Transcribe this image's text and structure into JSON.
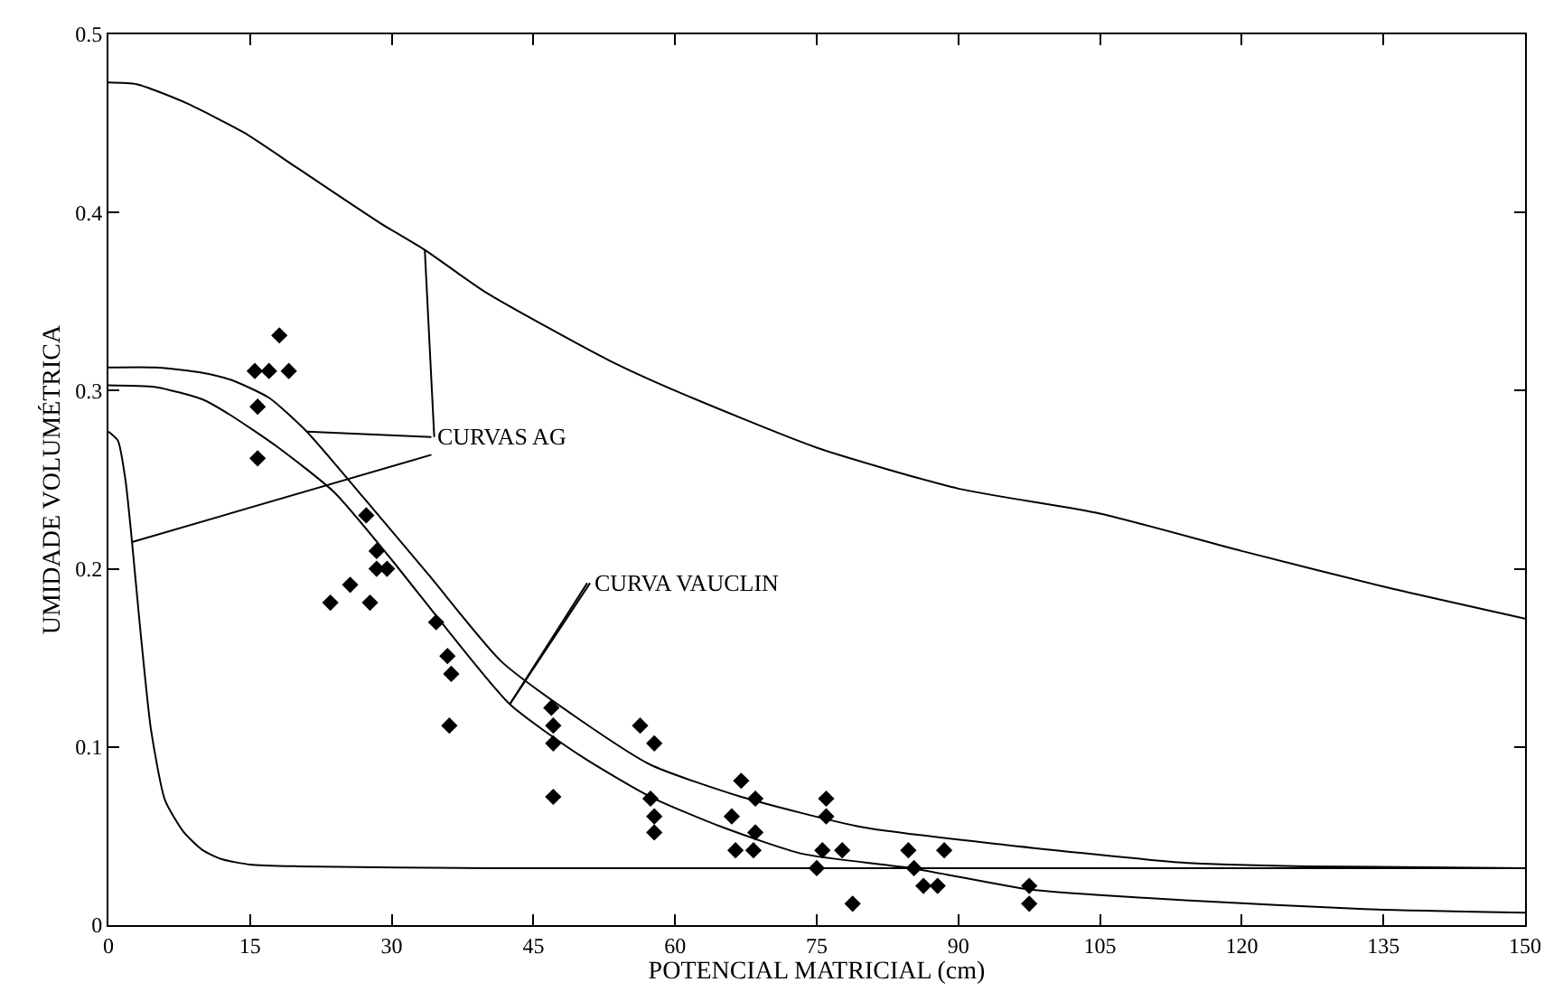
{
  "chart_data": {
    "type": "line",
    "xlabel": "POTENCIAL MATRICIAL (cm)",
    "ylabel": "UMIDADE VOLUMÉTRICA",
    "xlim": [
      0,
      150
    ],
    "xticks": [
      0,
      15,
      30,
      45,
      60,
      75,
      90,
      105,
      120,
      135,
      150
    ],
    "ylim": [
      0,
      0.5
    ],
    "yticks": [
      0,
      0.1,
      0.2,
      0.3,
      0.4,
      0.5
    ],
    "line_style": "solid",
    "marker": "none",
    "annotations": [
      {
        "text": "CURVAS AG",
        "x": 33.5,
        "y": 0.379
      },
      {
        "text": "CURVA VAUCLIN",
        "x": 42.5,
        "y": 0.124
      }
    ],
    "series": [
      {
        "color": "#000000",
        "x": [
          0,
          3,
          8,
          14.3,
          20,
          28.8,
          33.5,
          40,
          53,
          60,
          75,
          90,
          105,
          120,
          135,
          150
        ],
        "values": [
          0.473,
          0.472,
          0.462,
          0.445,
          0.425,
          0.394,
          0.379,
          0.355,
          0.317,
          0.3,
          0.268,
          0.245,
          0.231,
          0.21,
          0.19,
          0.172
        ]
      },
      {
        "color": "#000000",
        "x": [
          0,
          5,
          10,
          13,
          17,
          21,
          27,
          34,
          41.6,
          50,
          57.4,
          67,
          79.8,
          95,
          114,
          127,
          150
        ],
        "values": [
          0.313,
          0.313,
          0.31,
          0.306,
          0.296,
          0.277,
          0.24,
          0.196,
          0.148,
          0.115,
          0.09,
          0.072,
          0.055,
          0.045,
          0.035,
          0.033,
          0.032
        ]
      },
      {
        "color": "#000000",
        "x": [
          0,
          5,
          10,
          13,
          18,
          23.9,
          30,
          36,
          42.5,
          50,
          57.4,
          65,
          73.5,
          85,
          97.5,
          104.6,
          114,
          133,
          150
        ],
        "values": [
          0.303,
          0.302,
          0.295,
          0.286,
          0.268,
          0.243,
          0.205,
          0.165,
          0.124,
          0.095,
          0.072,
          0.055,
          0.04,
          0.032,
          0.02,
          0.017,
          0.014,
          0.009,
          0.007
        ]
      },
      {
        "color": "#000000",
        "x": [
          0,
          1,
          1.8,
          2.5,
          3.3,
          4.5,
          6,
          8,
          10,
          12,
          15,
          20,
          40,
          80,
          150
        ],
        "values": [
          0.277,
          0.272,
          0.25,
          0.215,
          0.17,
          0.11,
          0.07,
          0.052,
          0.042,
          0.037,
          0.034,
          0.033,
          0.032,
          0.032,
          0.032
        ]
      },
      {
        "type": "scatter",
        "marker": "diamond",
        "color": "#000000",
        "x": [
          15.5,
          17.0,
          19.1,
          18.1,
          15.8,
          15.8,
          27.3,
          28.4,
          28.4,
          29.5,
          25.6,
          23.5,
          27.7,
          34.7,
          35.9,
          36.3,
          36.1,
          46.9,
          47.1,
          47.1,
          47.1,
          56.3,
          57.8,
          57.4,
          57.8,
          57.8,
          67.0,
          68.5,
          66.0,
          68.5,
          66.4,
          68.3,
          76.0,
          76.0,
          75.6,
          77.7,
          75.0,
          78.8,
          84.7,
          88.5,
          85.3,
          86.3,
          87.8,
          97.5,
          97.5
        ],
        "values": [
          0.311,
          0.311,
          0.311,
          0.331,
          0.291,
          0.262,
          0.23,
          0.21,
          0.2,
          0.2,
          0.191,
          0.181,
          0.181,
          0.17,
          0.151,
          0.141,
          0.112,
          0.122,
          0.112,
          0.102,
          0.072,
          0.112,
          0.102,
          0.071,
          0.061,
          0.052,
          0.081,
          0.071,
          0.061,
          0.052,
          0.042,
          0.042,
          0.071,
          0.061,
          0.042,
          0.042,
          0.032,
          0.012,
          0.042,
          0.042,
          0.032,
          0.022,
          0.022,
          0.022,
          0.012
        ]
      }
    ]
  }
}
